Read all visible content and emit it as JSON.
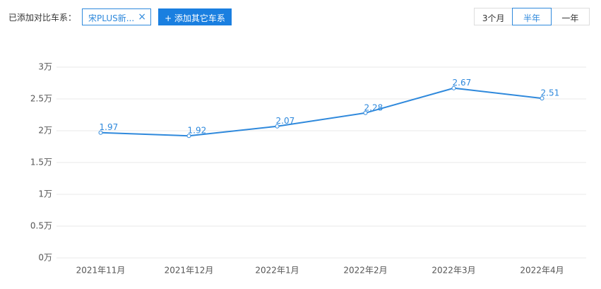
{
  "toolbar": {
    "label": "已添加对比车系：",
    "tag": "宋PLUS新...",
    "tag_close": "×",
    "add_button": "+ 添加其它车系",
    "ranges": [
      "3个月",
      "半年",
      "一年"
    ],
    "selected_range": 1
  },
  "chart_data": {
    "type": "line",
    "categories": [
      "2021年11月",
      "2021年12月",
      "2022年1月",
      "2022年2月",
      "2022年3月",
      "2022年4月"
    ],
    "values": [
      1.97,
      1.92,
      2.07,
      2.28,
      2.67,
      2.51
    ],
    "color": "#2f89dc",
    "ylim": [
      0,
      3
    ],
    "yticks": [
      {
        "value": 0,
        "label": "0万"
      },
      {
        "value": 0.5,
        "label": "0.5万"
      },
      {
        "value": 1,
        "label": "1万"
      },
      {
        "value": 1.5,
        "label": "1.5万"
      },
      {
        "value": 2,
        "label": "2万"
      },
      {
        "value": 2.5,
        "label": "2.5万"
      },
      {
        "value": 3,
        "label": "3万"
      }
    ],
    "grid": true
  }
}
